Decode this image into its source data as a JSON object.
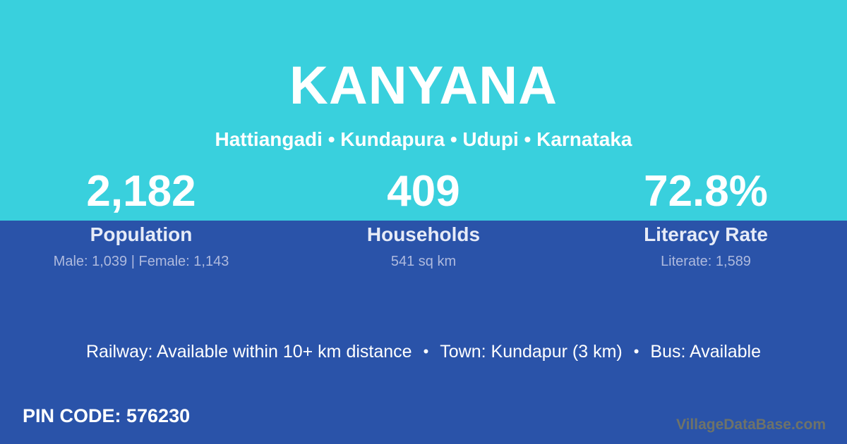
{
  "header": {
    "title": "KANYANA",
    "location_line": "Hattiangadi • Kundapura • Udupi • Karnataka"
  },
  "stats": [
    {
      "value": "2,182",
      "label": "Population",
      "sub": "Male: 1,039 | Female: 1,143"
    },
    {
      "value": "409",
      "label": "Households",
      "sub": "541 sq km"
    },
    {
      "value": "72.8%",
      "label": "Literacy Rate",
      "sub": "Literate: 1,589"
    }
  ],
  "transport": {
    "items": [
      "Railway: Available within 10+ km distance",
      "Town: Kundapur (3 km)",
      "Bus: Available"
    ],
    "separator": "•"
  },
  "footer": {
    "pin_code": "PIN CODE: 576230",
    "watermark": "VillageDataBase.com"
  },
  "colors": {
    "header_bg": "#39d0dd",
    "body_bg": "#2a53a9",
    "primary_text": "#ffffff",
    "label_text": "#e6ebf7",
    "substat_text": "#aebade",
    "watermark_text": "#6f7368"
  }
}
